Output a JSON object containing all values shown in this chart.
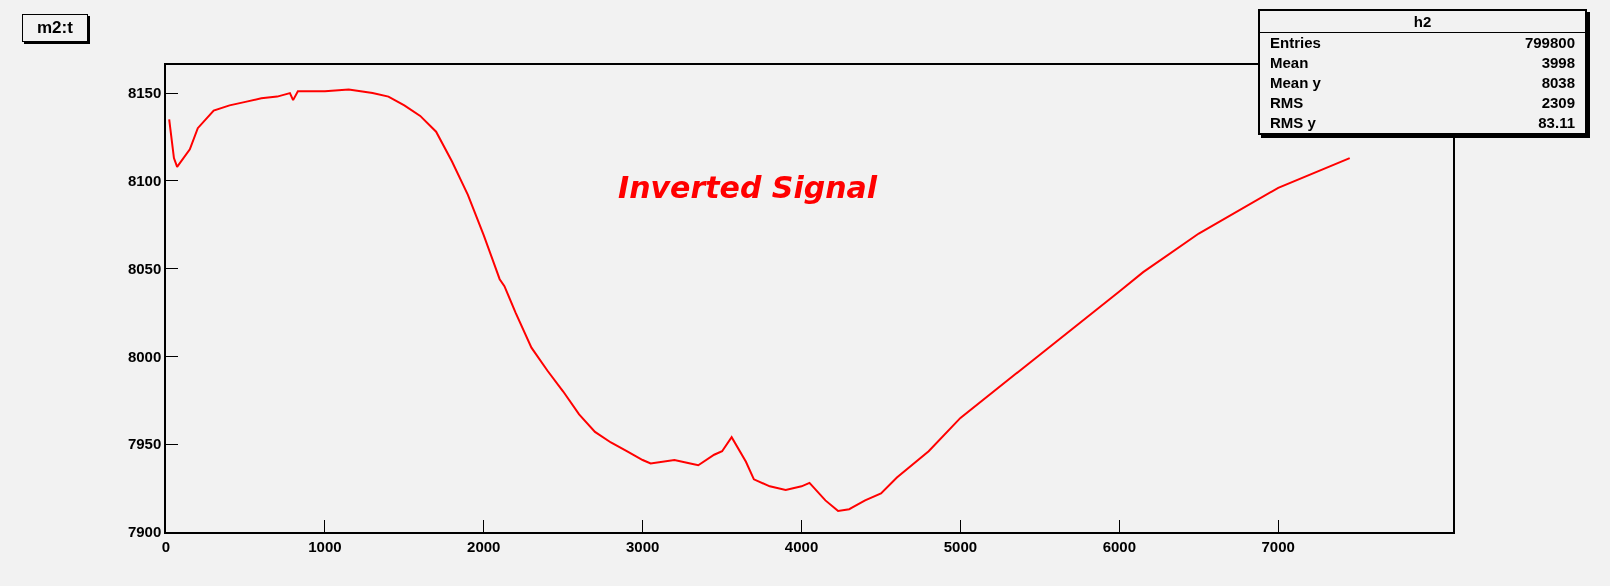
{
  "chart_data": {
    "type": "line",
    "title": "m2:t",
    "x": [
      20,
      50,
      70,
      150,
      200,
      300,
      400,
      500,
      600,
      700,
      780,
      800,
      830,
      1000,
      1150,
      1300,
      1400,
      1500,
      1600,
      1700,
      1800,
      1900,
      2000,
      2100,
      2130,
      2200,
      2300,
      2400,
      2500,
      2600,
      2700,
      2800,
      2900,
      3000,
      3050,
      3200,
      3300,
      3350,
      3450,
      3500,
      3560,
      3650,
      3700,
      3800,
      3900,
      4000,
      4050,
      4150,
      4230,
      4300,
      4400,
      4500,
      4600,
      4800,
      5000,
      5500,
      6000,
      6150,
      6500,
      7000,
      7450
    ],
    "series": [
      {
        "color": "#ff0000",
        "values": [
          8135,
          8113,
          8108,
          8118,
          8130,
          8140,
          8143,
          8145,
          8147,
          8148,
          8150,
          8146,
          8151,
          8151,
          8152,
          8150,
          8148,
          8143,
          8137,
          8128,
          8111,
          8092,
          8069,
          8044,
          8040,
          8025,
          8005,
          7992,
          7980,
          7967,
          7957,
          7951,
          7946,
          7941,
          7939,
          7941,
          7939,
          7938,
          7944,
          7946,
          7954,
          7940,
          7930,
          7926,
          7924,
          7926,
          7928,
          7918,
          7912,
          7913,
          7918,
          7922,
          7931,
          7946,
          7965,
          8001,
          8037,
          8048,
          8070,
          8096,
          8113
        ]
      }
    ],
    "xlim": [
      0,
      8100
    ],
    "ylim": [
      7900,
      8166
    ],
    "xticks": [
      0,
      1000,
      2000,
      3000,
      4000,
      5000,
      6000,
      7000
    ],
    "yticks": [
      7900,
      7950,
      8000,
      8050,
      8100,
      8150
    ],
    "grid": false,
    "marker": "none",
    "line_style": "solid",
    "annotations": [
      "Inverted Signal",
      "h2",
      "Entries",
      "799800",
      "Mean",
      "3998",
      "Mean y",
      "8038",
      "RMS",
      "2309",
      "RMS y",
      "83.11"
    ]
  }
}
